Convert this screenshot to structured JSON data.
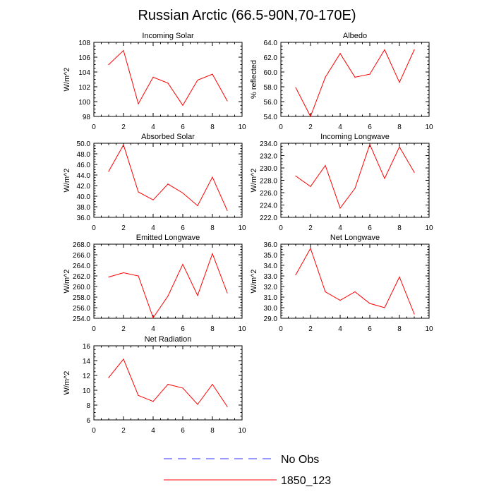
{
  "figure": {
    "title": "Russian Arctic (66.5-90N,70-170E)"
  },
  "chart_data": [
    {
      "type": "line",
      "title": "Incoming Solar",
      "xlabel": "",
      "ylabel": "W/m^2",
      "xlim": [
        0,
        10
      ],
      "ylim": [
        98,
        108
      ],
      "xticks": [
        "0",
        "2",
        "4",
        "6",
        "8",
        "10"
      ],
      "yticks": [
        "98",
        "100",
        "102",
        "104",
        "106",
        "108"
      ],
      "x": [
        1,
        2,
        3,
        4,
        5,
        6,
        7,
        8,
        9
      ],
      "series": [
        {
          "name": "1850_123",
          "color": "#ff0000",
          "values": [
            105.0,
            106.9,
            99.7,
            103.3,
            102.5,
            99.5,
            102.9,
            103.7,
            100.1
          ]
        }
      ]
    },
    {
      "type": "line",
      "title": "Albedo",
      "xlabel": "",
      "ylabel": "% reflected",
      "xlim": [
        0,
        10
      ],
      "ylim": [
        54,
        64
      ],
      "xticks": [
        "0",
        "2",
        "4",
        "6",
        "8",
        "10"
      ],
      "yticks": [
        "54.0",
        "56.0",
        "58.0",
        "60.0",
        "62.0",
        "64.0"
      ],
      "x": [
        1,
        2,
        3,
        4,
        5,
        6,
        7,
        8,
        9
      ],
      "series": [
        {
          "name": "1850_123",
          "color": "#ff0000",
          "values": [
            57.9,
            54.0,
            59.3,
            62.5,
            59.3,
            59.7,
            63.0,
            58.6,
            63.0
          ]
        }
      ]
    },
    {
      "type": "line",
      "title": "Absorbed Solar",
      "xlabel": "",
      "ylabel": "W/m^2",
      "xlim": [
        0,
        10
      ],
      "ylim": [
        36,
        50
      ],
      "xticks": [
        "0",
        "2",
        "4",
        "6",
        "8",
        "10"
      ],
      "yticks": [
        "36.0",
        "38.0",
        "40.0",
        "42.0",
        "44.0",
        "46.0",
        "48.0",
        "50.0"
      ],
      "x": [
        1,
        2,
        3,
        4,
        5,
        6,
        7,
        8,
        9
      ],
      "series": [
        {
          "name": "1850_123",
          "color": "#ff0000",
          "values": [
            44.7,
            49.7,
            40.8,
            39.3,
            42.3,
            40.6,
            38.2,
            43.6,
            37.3
          ]
        }
      ]
    },
    {
      "type": "line",
      "title": "Incoming Longwave",
      "xlabel": "",
      "ylabel": "W/m^2",
      "xlim": [
        0,
        10
      ],
      "ylim": [
        222,
        234
      ],
      "xticks": [
        "0",
        "2",
        "4",
        "6",
        "8",
        "10"
      ],
      "yticks": [
        "222.0",
        "224.0",
        "226.0",
        "228.0",
        "230.0",
        "232.0",
        "234.0"
      ],
      "x": [
        1,
        2,
        3,
        4,
        5,
        6,
        7,
        8,
        9
      ],
      "series": [
        {
          "name": "1850_123",
          "color": "#ff0000",
          "values": [
            228.7,
            227.0,
            230.4,
            223.5,
            226.7,
            233.8,
            228.3,
            233.4,
            229.3
          ]
        }
      ]
    },
    {
      "type": "line",
      "title": "Emitted Longwave",
      "xlabel": "",
      "ylabel": "W/m^2",
      "xlim": [
        0,
        10
      ],
      "ylim": [
        254,
        268
      ],
      "xticks": [
        "0",
        "2",
        "4",
        "6",
        "8",
        "10"
      ],
      "yticks": [
        "254.0",
        "256.0",
        "258.0",
        "260.0",
        "262.0",
        "264.0",
        "266.0",
        "268.0"
      ],
      "x": [
        1,
        2,
        3,
        4,
        5,
        6,
        7,
        8,
        9
      ],
      "series": [
        {
          "name": "1850_123",
          "color": "#ff0000",
          "values": [
            261.8,
            262.6,
            262.0,
            254.1,
            258.2,
            264.2,
            258.3,
            266.2,
            258.8
          ]
        }
      ]
    },
    {
      "type": "line",
      "title": "Net Longwave",
      "xlabel": "",
      "ylabel": "W/m^2",
      "xlim": [
        0,
        10
      ],
      "ylim": [
        29,
        36
      ],
      "xticks": [
        "0",
        "2",
        "4",
        "6",
        "8",
        "10"
      ],
      "yticks": [
        "29.0",
        "30.0",
        "31.0",
        "32.0",
        "33.0",
        "34.0",
        "35.0",
        "36.0"
      ],
      "x": [
        1,
        2,
        3,
        4,
        5,
        6,
        7,
        8,
        9
      ],
      "series": [
        {
          "name": "1850_123",
          "color": "#ff0000",
          "values": [
            33.1,
            35.6,
            31.5,
            30.7,
            31.5,
            30.4,
            30.0,
            32.9,
            29.4
          ]
        }
      ]
    },
    {
      "type": "line",
      "title": "Net Radiation",
      "xlabel": "",
      "ylabel": "W/m^2",
      "xlim": [
        0,
        10
      ],
      "ylim": [
        6,
        16
      ],
      "xticks": [
        "0",
        "2",
        "4",
        "6",
        "8",
        "10"
      ],
      "yticks": [
        "6",
        "8",
        "10",
        "12",
        "14",
        "16"
      ],
      "x": [
        1,
        2,
        3,
        4,
        5,
        6,
        7,
        8,
        9
      ],
      "series": [
        {
          "name": "1850_123",
          "color": "#ff0000",
          "values": [
            11.7,
            14.2,
            9.3,
            8.5,
            10.8,
            10.3,
            8.1,
            10.8,
            7.8
          ]
        }
      ]
    }
  ],
  "legend": {
    "placement": "bottom-center",
    "items": [
      {
        "label": "No Obs",
        "color": "#3333ff",
        "style": "dashed"
      },
      {
        "label": "1850_123",
        "color": "#ff0000",
        "style": "solid"
      }
    ]
  }
}
